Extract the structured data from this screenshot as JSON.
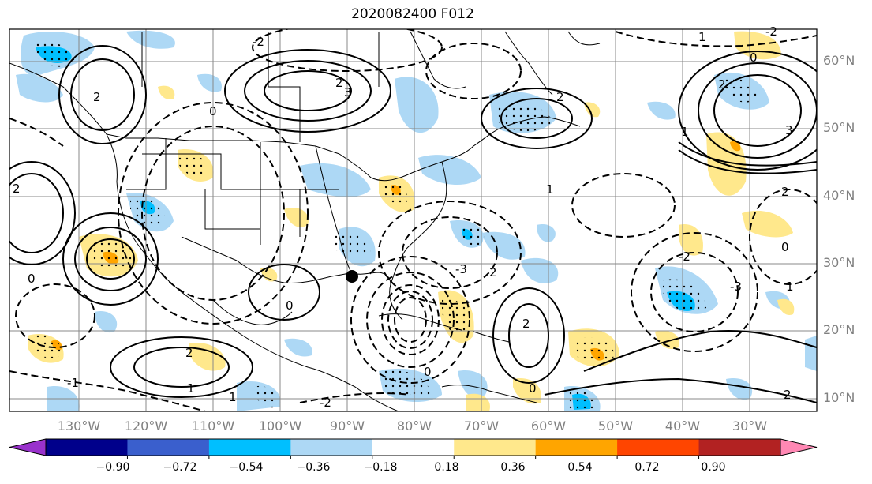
{
  "title": "2020082400 F012",
  "latitude_labels": [
    "60°N",
    "50°N",
    "40°N",
    "30°N",
    "20°N",
    "10°N"
  ],
  "longitude_labels": [
    "130°W",
    "120°W",
    "110°W",
    "100°W",
    "90°W",
    "80°W",
    "70°W",
    "60°W",
    "50°W",
    "40°W",
    "30°W"
  ],
  "colorbar": {
    "colors": [
      "#9932cc",
      "#00008b",
      "#3a5fcd",
      "#00bfff",
      "#add8f5",
      "#ffffff",
      "#ffe88c",
      "#ffa500",
      "#ff4500",
      "#b22222",
      "#ff88b4"
    ],
    "tick_labels": [
      "−0.90",
      "−0.72",
      "−0.54",
      "−0.36",
      "−0.18",
      "0.18",
      "0.36",
      "0.54",
      "0.72",
      "0.90"
    ],
    "extend": "both"
  },
  "contour_labels": [
    "-1",
    "-2",
    "0",
    "1",
    "2",
    "3",
    "-3"
  ],
  "marker": "black-dot",
  "colors": {
    "positive_fill": "#ffe88c",
    "negative_fill": "#add8f5",
    "orange_fill": "#ffa500",
    "deep_blue_fill": "#00bfff",
    "grid": "#808080"
  }
}
